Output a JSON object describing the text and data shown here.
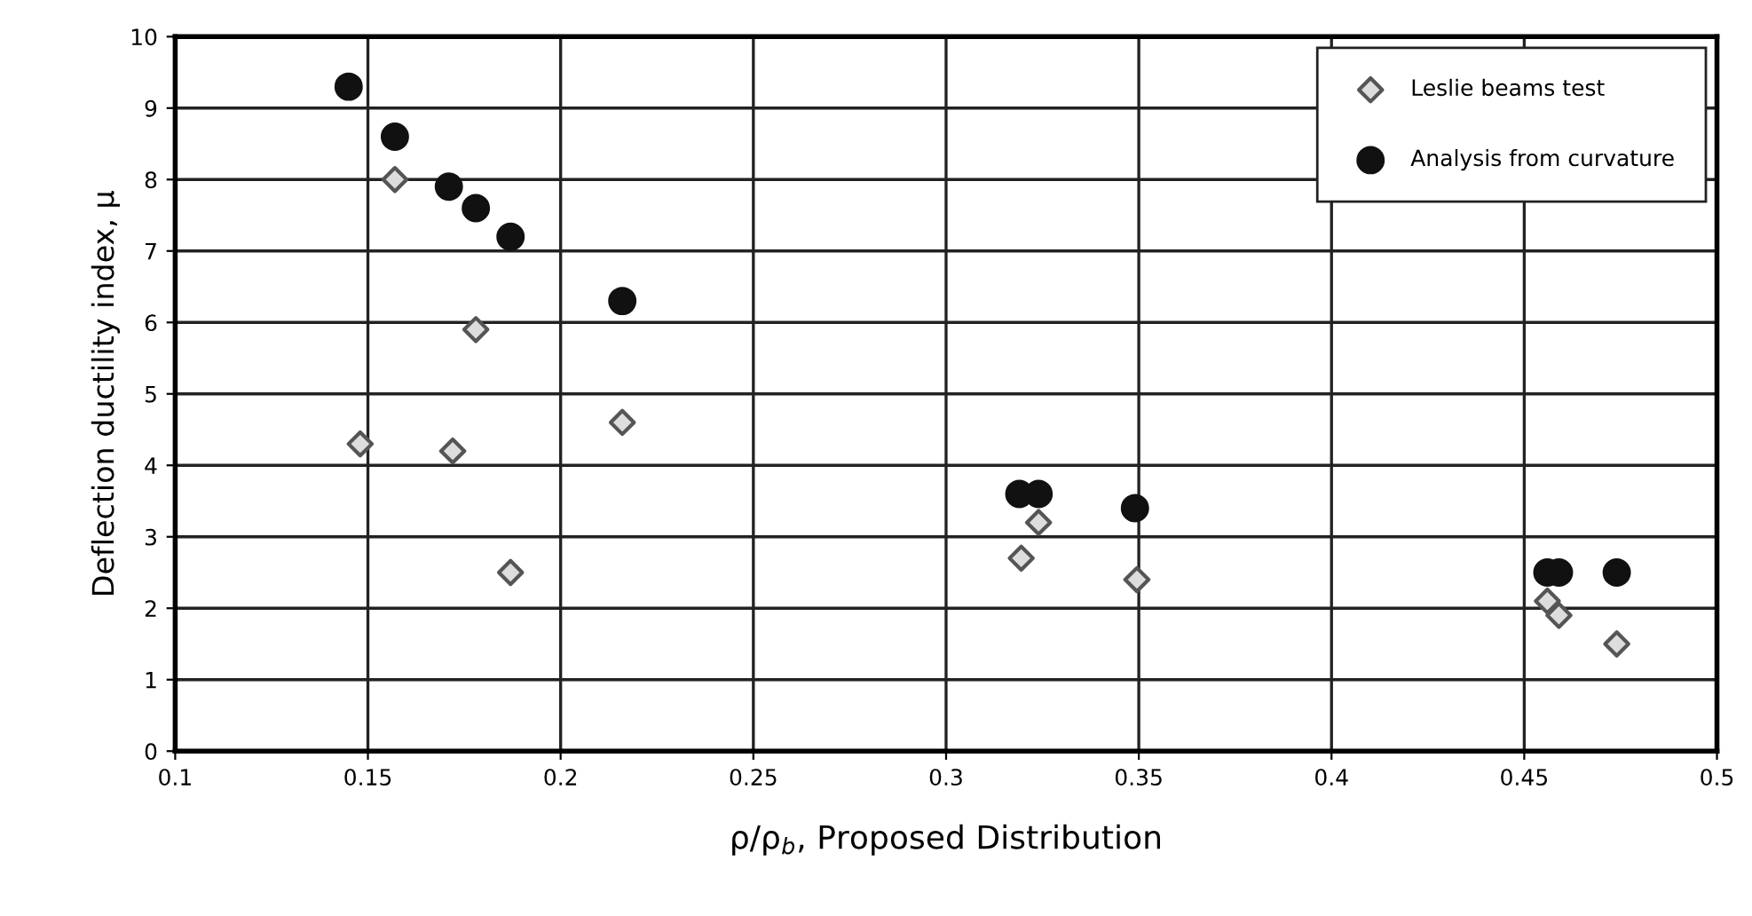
{
  "chart_data": {
    "type": "scatter",
    "xlabel": "ρ/ρ$_{b}$, Proposed Distribution",
    "ylabel": "Deflection ductility index, μ",
    "xlim": [
      0.1,
      0.5
    ],
    "xticks": [
      0.1,
      0.15,
      0.2,
      0.25,
      0.3,
      0.35,
      0.4,
      0.45,
      0.5
    ],
    "ylim": [
      0,
      10
    ],
    "yticks": [
      0,
      1,
      2,
      3,
      4,
      5,
      6,
      7,
      8,
      9,
      10
    ],
    "grid": true,
    "legend": "top right",
    "series": [
      {
        "name": "Leslie beams test",
        "color": "#555555",
        "marker": "diamond",
        "x": [
          0.157,
          0.178,
          0.148,
          0.172,
          0.187,
          0.216,
          0.324,
          0.3195,
          0.3495,
          0.456,
          0.459,
          0.474
        ],
        "values": [
          8.0,
          5.9,
          4.3,
          4.2,
          2.5,
          4.6,
          3.2,
          2.7,
          2.4,
          2.1,
          1.9,
          1.5
        ]
      },
      {
        "name": "Analysis from curvature",
        "color": "#111111",
        "marker": "circle",
        "x": [
          0.145,
          0.157,
          0.171,
          0.178,
          0.187,
          0.216,
          0.319,
          0.324,
          0.349,
          0.456,
          0.459,
          0.474
        ],
        "values": [
          9.3,
          8.6,
          7.9,
          7.6,
          7.2,
          6.3,
          3.6,
          3.6,
          3.4,
          2.5,
          2.5,
          2.5
        ]
      }
    ]
  }
}
